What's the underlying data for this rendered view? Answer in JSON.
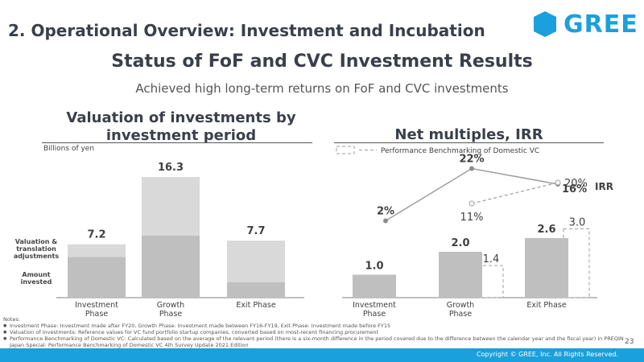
{
  "header": {
    "section_title": "2. Operational Overview: Investment and Incubation",
    "logo_text": "GREE",
    "main_title": "Status of FoF and CVC Investment Results",
    "subtitle": "Achieved high long-term returns on FoF and CVC investments"
  },
  "colors": {
    "brand": "#1aa0dc",
    "bar_dark": "#bfbfbf",
    "bar_light": "#d9d9d9",
    "line": "#9e9e9e"
  },
  "chart_data": [
    {
      "type": "bar",
      "title": "Valuation of investments by investment period",
      "ylabel": "Billions of yen",
      "categories": [
        "Investment Phase",
        "Growth Phase",
        "Exit Phase"
      ],
      "series": [
        {
          "name": "Amount invested",
          "values": [
            5.5,
            8.4,
            2.1
          ]
        },
        {
          "name": "Valuation & translation adjustments",
          "values": [
            1.7,
            7.9,
            5.6
          ]
        }
      ],
      "totals": [
        "7.2",
        "16.3",
        "7.7"
      ],
      "ylim": [
        0,
        18
      ]
    },
    {
      "type": "bar",
      "title": "Net multiples, IRR",
      "legend": "Performance Benchmarking of Domestic VC",
      "categories": [
        "Investment Phase",
        "Growth Phase",
        "Exit Phase"
      ],
      "multiples": [
        1.0,
        2.0,
        2.6
      ],
      "multiple_labels": [
        "1.0",
        "2.0",
        "2.6"
      ],
      "benchmark_multiples": [
        null,
        1.4,
        3.0
      ],
      "benchmark_multiple_labels": [
        "",
        "1.4",
        "3.0"
      ],
      "irr": [
        2,
        22,
        16
      ],
      "irr_labels": [
        "2%",
        "22%",
        "16%"
      ],
      "benchmark_irr": [
        null,
        11,
        20
      ],
      "benchmark_irr_labels": [
        "",
        "11%",
        "20%"
      ],
      "irr_series_label": "IRR",
      "ylim": [
        0,
        3.5
      ]
    }
  ],
  "left_chart": {
    "title_line1": "Valuation of investments by",
    "title_line2": "investment period",
    "unit": "Billions of yen",
    "legend_top": "Valuation & translation adjustments",
    "legend_bottom": "Amount invested"
  },
  "right_chart": {
    "title": "Net multiples, IRR"
  },
  "notes": {
    "heading": "Notes:",
    "items": [
      "Investment Phase: Investment made after FY20, Growth Phase: Investment made between FY16-FY19, Exit Phase: Investment made before FY15",
      "Valuation of investments: Reference values for VC fund portfolio startup companies, converted based on most-recent financing procurement",
      "Performance Benchmarking of Domestic VC: Calculated based on the average of the relevant period (there is a six-month difference in the period covered due to the difference between the calendar year and the fiscal year) in PREQIN Japan Special: Performance Benchmarking of Domestic VC 4th Survey Update 2021 Edition"
    ]
  },
  "footer": {
    "page_number": "23",
    "copyright": "Copyright © GREE, Inc. All Rights Reserved."
  }
}
